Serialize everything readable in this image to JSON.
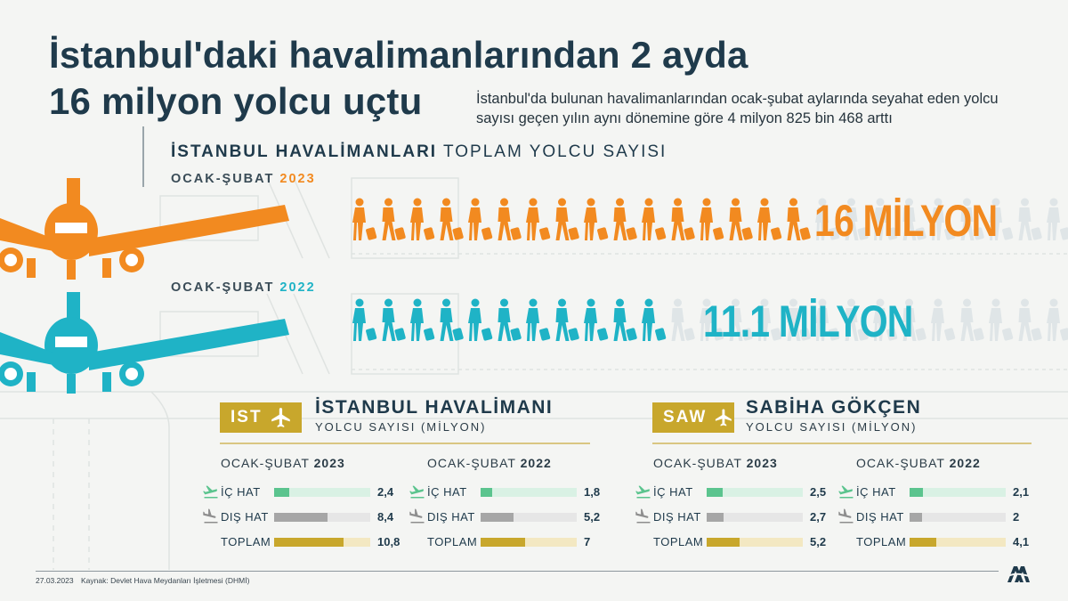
{
  "title_line1": "İstanbul'daki havalimanlarından 2 ayda",
  "title_line2": "16 milyon yolcu uçtu",
  "subtitle": "İstanbul'da bulunan havalimanlarından ocak-şubat aylarında seyahat eden yolcu sayısı geçen yılın aynı dönemine göre 4 milyon 825 bin 468 arttı",
  "section_bold": "İSTANBUL HAVALİMANLARI",
  "section_rest": "TOPLAM YOLCU SAYISI",
  "colors": {
    "orange": "#f28a20",
    "teal": "#1fb3c6",
    "gold": "#c8a72c",
    "green": "#5bc48e",
    "gray": "#a6a6a6",
    "navy": "#1f3a4b"
  },
  "icons": [
    "airplane-icon",
    "person-with-luggage-icon",
    "plane-takeoff-icon",
    "plane-landing-icon",
    "aa-logo-icon"
  ],
  "chart_data": [
    {
      "type": "bar",
      "title": "İSTANBUL HAVALİMANLARI TOPLAM YOLCU SAYISI",
      "categories": [
        "OCAK-ŞUBAT 2023",
        "OCAK-ŞUBAT 2022"
      ],
      "period_label": "OCAK-ŞUBAT",
      "years": [
        "2023",
        "2022"
      ],
      "values": [
        16,
        11.1
      ],
      "value_labels": [
        "16 MİLYON",
        "11.1 MİLYON"
      ],
      "unit": "milyon"
    },
    {
      "type": "bar",
      "airport_code": "IST",
      "airport_name": "İSTANBUL HAVALİMANI",
      "ylabel": "YOLCU SAYISI (MİLYON)",
      "periods": [
        {
          "period_label": "OCAK-ŞUBAT",
          "year": "2023",
          "rows": [
            {
              "label": "İÇ HAT",
              "value": 2.4,
              "display": "2,4"
            },
            {
              "label": "DIŞ HAT",
              "value": 8.4,
              "display": "8,4"
            },
            {
              "label": "TOPLAM",
              "value": 10.8,
              "display": "10,8"
            }
          ]
        },
        {
          "period_label": "OCAK-ŞUBAT",
          "year": "2022",
          "rows": [
            {
              "label": "İÇ HAT",
              "value": 1.8,
              "display": "1,8"
            },
            {
              "label": "DIŞ HAT",
              "value": 5.2,
              "display": "5,2"
            },
            {
              "label": "TOPLAM",
              "value": 7,
              "display": "7"
            }
          ]
        }
      ]
    },
    {
      "type": "bar",
      "airport_code": "SAW",
      "airport_name": "SABİHA GÖKÇEN",
      "ylabel": "YOLCU SAYISI (MİLYON)",
      "periods": [
        {
          "period_label": "OCAK-ŞUBAT",
          "year": "2023",
          "rows": [
            {
              "label": "İÇ HAT",
              "value": 2.5,
              "display": "2,5"
            },
            {
              "label": "DIŞ HAT",
              "value": 2.7,
              "display": "2,7"
            },
            {
              "label": "TOPLAM",
              "value": 5.2,
              "display": "5,2"
            }
          ]
        },
        {
          "period_label": "OCAK-ŞUBAT",
          "year": "2022",
          "rows": [
            {
              "label": "İÇ HAT",
              "value": 2.1,
              "display": "2,1"
            },
            {
              "label": "DIŞ HAT",
              "value": 2,
              "display": "2"
            },
            {
              "label": "TOPLAM",
              "value": 4.1,
              "display": "4,1"
            }
          ]
        }
      ]
    }
  ],
  "footer": {
    "date": "27.03.2023",
    "source": "Kaynak: Devlet Hava Meydanları İşletmesi (DHMİ)",
    "logo_text": "AA"
  }
}
